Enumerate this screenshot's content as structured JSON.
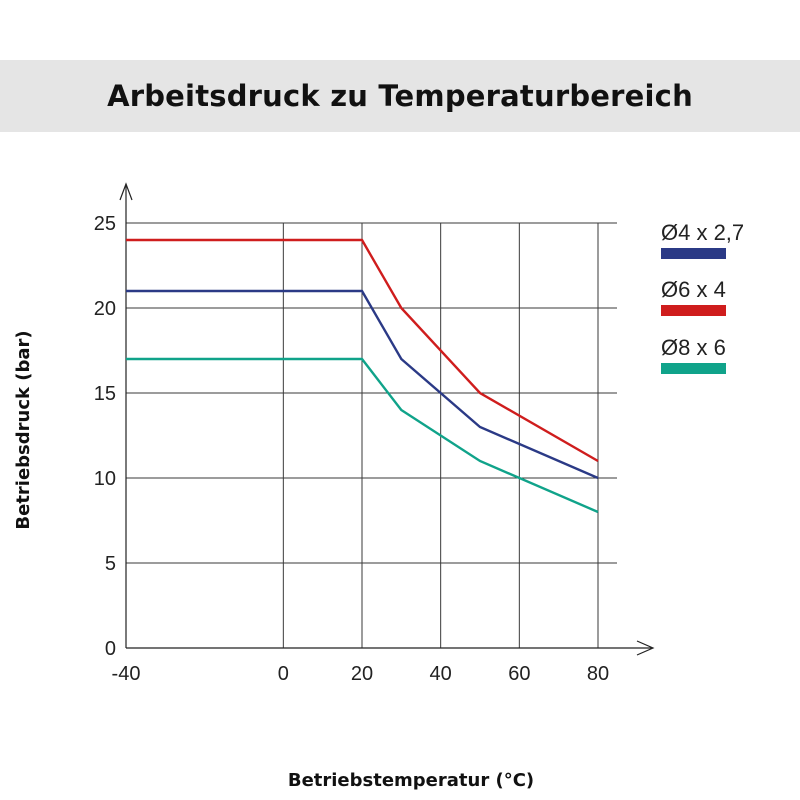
{
  "chart_data": {
    "type": "line",
    "title": "Arbeitsdruck zu Temperaturbereich",
    "xlabel": "Betriebstemperatur (°C)",
    "ylabel": "Betriebsdruck (bar)",
    "xlim": [
      -40,
      80
    ],
    "ylim": [
      0,
      25
    ],
    "x_ticks": [
      -40,
      0,
      20,
      40,
      60,
      80
    ],
    "y_ticks": [
      0,
      5,
      10,
      15,
      20,
      25
    ],
    "grid": true,
    "legend_position": "right",
    "series": [
      {
        "name": "Ø4 x 2,7",
        "color": "#2b3a86",
        "x": [
          -40,
          20,
          30,
          50,
          80
        ],
        "y": [
          21,
          21,
          17,
          13,
          10
        ]
      },
      {
        "name": "Ø6 x 4",
        "color": "#cf1d1d",
        "x": [
          -40,
          20,
          30,
          50,
          80
        ],
        "y": [
          24,
          24,
          20,
          15,
          11
        ]
      },
      {
        "name": "Ø8 x 6",
        "color": "#10a38a",
        "x": [
          -40,
          20,
          30,
          50,
          80
        ],
        "y": [
          17,
          17,
          14,
          11,
          8
        ]
      }
    ]
  }
}
